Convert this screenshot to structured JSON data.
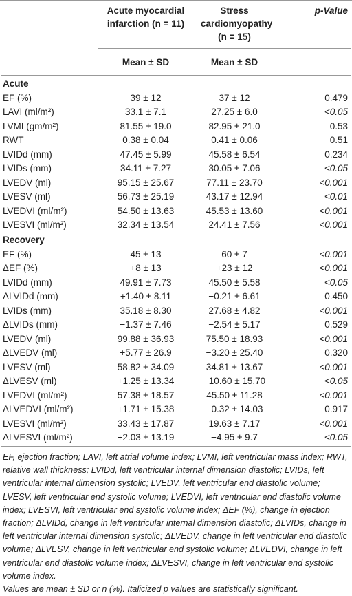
{
  "header": {
    "col1": "Acute myocardial infarction (n = 11)",
    "col2": "Stress cardiomyopathy (n = 15)",
    "col3": "p-Value",
    "subheader": [
      "Mean ± SD",
      "Mean ± SD"
    ]
  },
  "sections": [
    {
      "title": "Acute",
      "rows": [
        [
          "EF (%)",
          "39 ± 12",
          "37 ± 12",
          "0.479"
        ],
        [
          "LAVI (ml/m²)",
          "33.1 ± 7.1",
          "27.25 ± 6.0",
          "<0.05"
        ],
        [
          "LVMI (gm/m²)",
          "81.55 ± 19.0",
          "82.95 ± 21.0",
          "0.53"
        ],
        [
          "RWT",
          "0.38 ± 0.04",
          "0.41 ± 0.06",
          "0.51"
        ],
        [
          "LVIDd (mm)",
          "47.45 ± 5.99",
          "45.58 ± 6.54",
          "0.234"
        ],
        [
          "LVIDs (mm)",
          "34.11 ± 7.27",
          "30.05 ± 7.06",
          "<0.05"
        ],
        [
          "LVEDV (ml)",
          "95.15 ± 25.67",
          "77.11 ± 23.70",
          "<0.001"
        ],
        [
          "LVESV (ml)",
          "56.73 ± 25.19",
          "43.17 ± 12.94",
          "<0.01"
        ],
        [
          "LVEDVI (ml/m²)",
          "54.50 ± 13.63",
          "45.53 ± 13.60",
          "<0.001"
        ],
        [
          "LVESVI (ml/m²)",
          "32.34 ± 13.54",
          "24.41 ± 7.56",
          "<0.001"
        ]
      ]
    },
    {
      "title": "Recovery",
      "rows": [
        [
          "EF (%)",
          "45 ± 13",
          "60 ± 7",
          "<0.001"
        ],
        [
          "ΔEF (%)",
          "+8 ± 13",
          "+23 ± 12",
          "<0.001"
        ],
        [
          "LVIDd (mm)",
          "49.91 ± 7.73",
          "45.50 ± 5.58",
          "<0.05"
        ],
        [
          "ΔLVIDd (mm)",
          "+1.40 ± 8.11",
          "−0.21 ± 6.61",
          "0.450"
        ],
        [
          "LVIDs (mm)",
          "35.18 ± 8.30",
          "27.68 ± 4.82",
          "<0.001"
        ],
        [
          "ΔLVIDs (mm)",
          "−1.37 ± 7.46",
          "−2.54 ± 5.17",
          "0.529"
        ],
        [
          "LVEDV (ml)",
          "99.88 ± 36.93",
          "75.50 ± 18.93",
          "<0.001"
        ],
        [
          "ΔLVEDV (ml)",
          "+5.77 ± 26.9",
          "−3.20 ± 25.40",
          "0.320"
        ],
        [
          "LVESV (ml)",
          "58.82 ± 34.09",
          "34.81 ± 13.67",
          "<0.001"
        ],
        [
          "ΔLVESV (ml)",
          "+1.25 ± 13.34",
          "−10.60 ± 15.70",
          "<0.05"
        ],
        [
          "LVEDVI (ml/m²)",
          "57.38 ± 18.57",
          "45.50 ± 11.28",
          "<0.001"
        ],
        [
          "ΔLVEDVI (ml/m²)",
          "+1.71 ± 15.38",
          "−0.32 ± 14.03",
          "0.917"
        ],
        [
          "LVESVI (ml/m²)",
          "33.43 ± 17.87",
          "19.63 ± 7.17",
          "<0.001"
        ],
        [
          "ΔLVESVI (ml/m²)",
          "+2.03 ± 13.19",
          "−4.95 ± 9.7",
          "<0.05"
        ]
      ]
    }
  ],
  "footnotes": [
    "EF, ejection fraction; LAVI, left atrial volume index; LVMI, left ventricular mass index; RWT, relative wall thickness; LVIDd, left ventricular internal dimension diastolic; LVIDs, left ventricular internal dimension systolic; LVEDV, left ventricular end diastolic volume; LVESV, left ventricular end systolic volume; LVEDVI, left ventricular end diastolic volume index; LVESVI, left ventricular end systolic volume index; ΔEF (%), change in ejection fraction; ΔLVIDd, change in left ventricular internal dimension diastolic; ΔLVIDs, change in left ventricular internal dimension systolic; ΔLVEDV, change in left ventricular end diastolic volume; ΔLVESV, change in left ventricular end systolic volume; ΔLVEDVI, change in left ventricular end diastolic volume index; ΔLVESVI, change in left ventricular end systolic volume index.",
    "Values are mean ± SD or n (%). Italicized p values are statistically significant."
  ]
}
